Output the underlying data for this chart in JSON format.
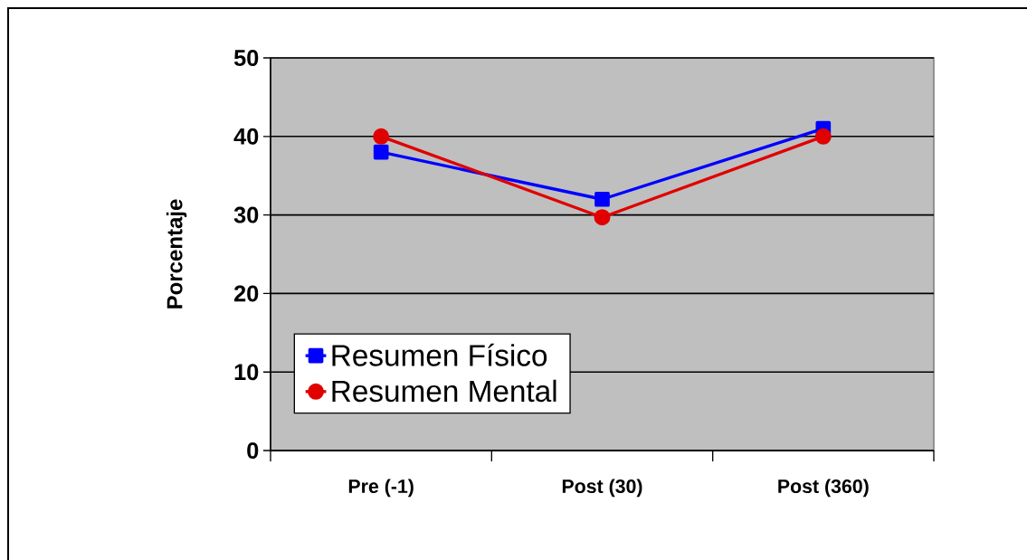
{
  "chart_data": {
    "type": "line",
    "ylabel": "Porcentaje",
    "categories": [
      "Pre (-1)",
      "Post (30)",
      "Post (360)"
    ],
    "series": [
      {
        "name": "Resumen Físico",
        "color": "#0000ff",
        "marker": "square",
        "values": [
          38,
          32,
          41
        ]
      },
      {
        "name": "Resumen Mental",
        "color": "#e00000",
        "marker": "circle",
        "values": [
          40,
          29.7,
          40
        ]
      }
    ],
    "ylim": [
      0,
      50
    ],
    "yticks": [
      0,
      10,
      20,
      30,
      40,
      50
    ],
    "grid": "y",
    "legend": "bottom left",
    "line_style": "solid"
  }
}
